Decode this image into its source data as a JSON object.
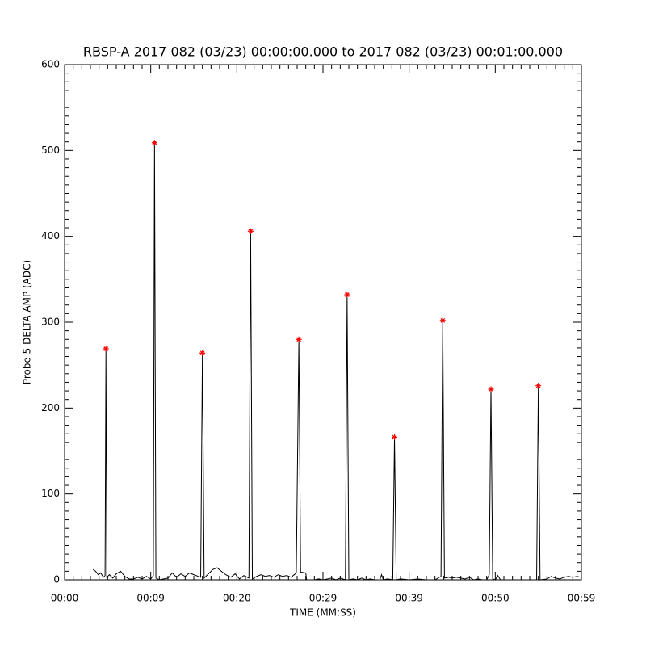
{
  "chart_data": {
    "type": "line",
    "title": "RBSP-A 2017 082 (03/23) 00:00:00.000 to 2017 082 (03/23) 00:01:00.000",
    "xlabel": "TIME (MM:SS)",
    "ylabel": "Probe 5 DELTA AMP (ADC)",
    "xlim": [
      0,
      60
    ],
    "ylim": [
      0,
      600
    ],
    "xticks": [
      {
        "value": 0,
        "label": "00:00"
      },
      {
        "value": 10,
        "label": "00:09"
      },
      {
        "value": 20,
        "label": "00:20"
      },
      {
        "value": 30,
        "label": "00:29"
      },
      {
        "value": 40,
        "label": "00:39"
      },
      {
        "value": 50,
        "label": "00:50"
      },
      {
        "value": 60,
        "label": "00:59"
      }
    ],
    "yticks": [
      0,
      100,
      200,
      300,
      400,
      500,
      600
    ],
    "grid": false,
    "series": [
      {
        "type": "line",
        "color": "#000000",
        "x": [
          3.3,
          3.6,
          3.9,
          4.2,
          4.5,
          4.7,
          4.8,
          4.9,
          5.2,
          5.6,
          6.0,
          6.5,
          7.0,
          7.5,
          8.0,
          8.5,
          9.0,
          9.5,
          10.0,
          10.3,
          10.44,
          10.6,
          11.0,
          12.0,
          12.5,
          13.0,
          13.5,
          14.0,
          14.5,
          15.0,
          15.8,
          16.0,
          16.2,
          16.6,
          17.2,
          17.7,
          18.2,
          18.7,
          19.3,
          19.8,
          20.3,
          20.8,
          21.4,
          21.6,
          21.8,
          22.3,
          22.8,
          23.3,
          23.8,
          24.3,
          24.8,
          25.3,
          25.8,
          26.3,
          26.9,
          27.2,
          27.4,
          28.0,
          28.1,
          28.5,
          29.0,
          29.5,
          30.0,
          30.5,
          31.0,
          31.5,
          32.0,
          32.6,
          32.8,
          33.0,
          33.5,
          34.0,
          34.5,
          35.0,
          35.5,
          36.0,
          36.6,
          36.8,
          37.0,
          37.5,
          38.1,
          38.3,
          38.5,
          39.0,
          40.0,
          41.0,
          42.0,
          43.0,
          43.7,
          43.9,
          44.1,
          44.6,
          45.0,
          45.5,
          46.0,
          46.5,
          47.0,
          47.5,
          48.0,
          48.5,
          49.0,
          49.3,
          49.5,
          49.7,
          50.0,
          50.3,
          50.6,
          51.0,
          52.0,
          53.0,
          54.0,
          54.8,
          55.0,
          55.2,
          56.0,
          56.5,
          57.0,
          57.5,
          58.0,
          58.5,
          59.0,
          59.5,
          59.9
        ],
        "values": [
          12,
          10,
          6,
          8,
          3,
          5,
          269,
          3,
          6,
          2,
          7,
          10,
          4,
          1,
          1,
          3,
          1,
          4,
          1,
          5,
          509,
          2,
          0,
          2,
          8,
          3,
          7,
          4,
          8,
          6,
          3,
          264,
          2,
          6,
          12,
          14,
          10,
          6,
          3,
          7,
          1,
          5,
          2,
          406,
          1,
          4,
          6,
          4,
          5,
          3,
          6,
          4,
          5,
          3,
          8,
          280,
          9,
          8,
          0,
          0,
          0,
          1,
          0,
          1,
          2,
          0,
          2,
          0,
          332,
          0,
          1,
          0,
          2,
          0,
          1,
          0,
          0,
          6,
          0,
          1,
          0,
          166,
          0,
          1,
          0,
          1,
          0,
          0,
          4,
          302,
          2,
          3,
          2,
          3,
          2,
          1,
          3,
          0,
          1,
          0,
          0,
          6,
          222,
          1,
          0,
          5,
          0,
          0,
          0,
          0,
          0,
          0,
          226,
          0,
          1,
          4,
          2,
          1,
          3,
          4,
          3,
          4,
          3
        ]
      },
      {
        "type": "scatter",
        "color": "#ff0000",
        "marker": "asterisk",
        "x": [
          4.8,
          10.44,
          16.0,
          21.6,
          27.2,
          32.8,
          38.3,
          43.9,
          49.5,
          55.0
        ],
        "values": [
          269,
          509,
          264,
          406,
          280,
          332,
          166,
          302,
          222,
          226
        ]
      }
    ]
  }
}
